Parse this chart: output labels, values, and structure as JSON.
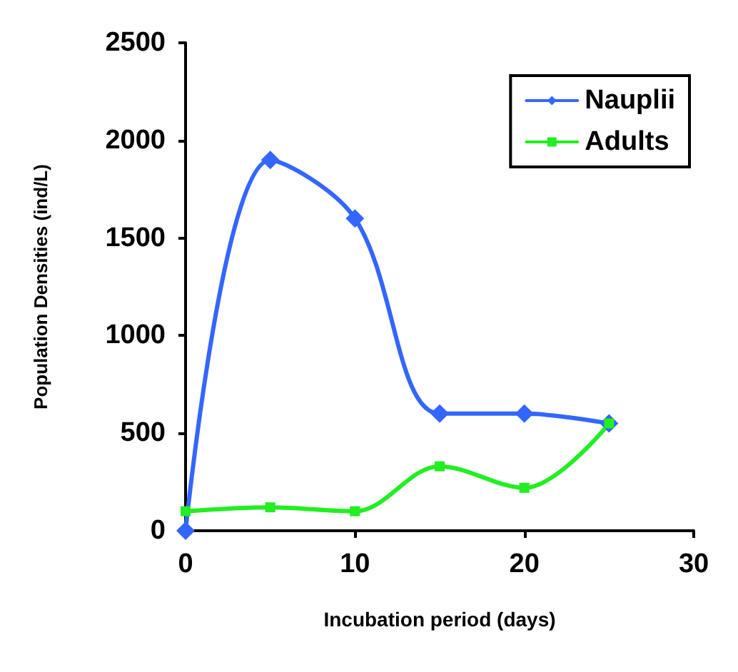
{
  "chart_data": {
    "type": "line",
    "xlabel": "Incubation period (days)",
    "ylabel": "Population Densities (ind/L)",
    "x": [
      0,
      5,
      10,
      15,
      20,
      25
    ],
    "series": [
      {
        "name": "Nauplii",
        "color": "#3366ff",
        "marker": "diamond",
        "values": [
          0,
          1900,
          1600,
          600,
          600,
          550
        ]
      },
      {
        "name": "Adults",
        "color": "#22ee22",
        "marker": "square",
        "values": [
          100,
          120,
          100,
          330,
          220,
          550
        ]
      }
    ],
    "xlim": [
      0,
      30
    ],
    "xticks": [
      0,
      10,
      20,
      30
    ],
    "ylim": [
      0,
      2500
    ],
    "yticks": [
      0,
      500,
      1000,
      1500,
      2000,
      2500
    ],
    "grid": false,
    "legend": "top right",
    "line_style": "solid"
  }
}
